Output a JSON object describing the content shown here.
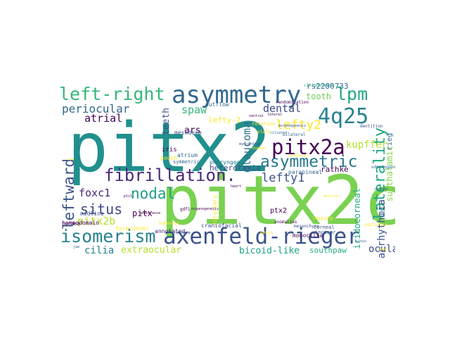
{
  "words": [
    {
      "text": "pitx2",
      "color": "#21908d"
    },
    {
      "text": "pitx2c",
      "color": "#7ad151"
    },
    {
      "text": "asymmetry",
      "color": "#31688e"
    },
    {
      "text": "axenfeld-rieger",
      "color": "#3b528b"
    },
    {
      "text": "left-right",
      "color": "#35b779"
    },
    {
      "text": "4q25",
      "color": "#26828e"
    },
    {
      "text": "lpm",
      "color": "#22a884"
    },
    {
      "text": "pitx2a",
      "color": "#440154"
    },
    {
      "text": "asymmetric",
      "color": "#2a788e"
    },
    {
      "text": "fibrillation.",
      "color": "#482878"
    },
    {
      "text": "isomerism",
      "color": "#26828e"
    },
    {
      "text": "laterality",
      "color": "#22a884"
    },
    {
      "text": "leftward",
      "color": "#3b528b"
    },
    {
      "text": "nodal",
      "color": "#1f9e89"
    },
    {
      "text": "situs",
      "color": "#414487"
    },
    {
      "text": "periocular",
      "color": "#31688e"
    },
    {
      "text": "lefty2",
      "color": "#fde725"
    },
    {
      "text": "lefty1",
      "color": "#3b528b"
    },
    {
      "text": "spaw",
      "color": "#35b779"
    },
    {
      "text": "foxc1",
      "color": "#482878"
    },
    {
      "text": "atrial",
      "color": "#440154"
    },
    {
      "text": "tooth",
      "color": "#6ece58"
    },
    {
      "text": "dental",
      "color": "#3e4a89"
    },
    {
      "text": "glaucoma",
      "color": "#2c728e"
    },
    {
      "text": "pitx2b",
      "color": "#b5de2b"
    },
    {
      "text": "cilia",
      "color": "#26828e"
    },
    {
      "text": "extraocular",
      "color": "#b5de2b"
    },
    {
      "text": "bicoid-like",
      "color": "#1fa188"
    },
    {
      "text": "southpaw",
      "color": "#22a884"
    },
    {
      "text": "ocular",
      "color": "#3e4a89"
    },
    {
      "text": "arrhythmia",
      "color": "#3b528b"
    },
    {
      "text": "subthalamic",
      "color": "#84d44b"
    },
    {
      "text": "kupffer",
      "color": "#b5de2b"
    },
    {
      "text": "rathke",
      "color": "#440154"
    },
    {
      "text": "heterotaxia",
      "color": "#3e4a89"
    },
    {
      "text": "rs2200733",
      "color": "#31688e"
    },
    {
      "text": "iridocorneal",
      "color": "#22a884"
    },
    {
      "text": "teeth",
      "color": "#3b528b"
    },
    {
      "text": "ars",
      "color": "#440154"
    },
    {
      "text": "lefty-2",
      "color": "#fde725"
    },
    {
      "text": "pitx",
      "color": "#440154"
    },
    {
      "text": "rieg",
      "color": "#31688e"
    },
    {
      "text": "mesoderm",
      "color": "#3b528b"
    },
    {
      "text": "iris",
      "color": "#440154"
    },
    {
      "text": "atrium",
      "color": "#31688e"
    },
    {
      "text": "pouch",
      "color": "#fde725"
    },
    {
      "text": "midline",
      "color": "#3b528b"
    },
    {
      "text": "homeodomain",
      "color": "#440154"
    },
    {
      "text": "pharyngeal",
      "color": "#2a788e"
    },
    {
      "text": "parapineal",
      "color": "#31688e"
    },
    {
      "text": "ptx2",
      "color": "#440154"
    },
    {
      "text": "pituitary",
      "color": "#fde725"
    },
    {
      "text": "incisor",
      "color": "#3b528b"
    },
    {
      "text": "corneal",
      "color": "#3b528b"
    },
    {
      "text": "looping",
      "color": "#fde725"
    },
    {
      "text": "monocilia",
      "color": "#440154"
    },
    {
      "text": "craniofacial",
      "color": "#3b528b"
    },
    {
      "text": "annotated",
      "color": "#482878"
    },
    {
      "text": "forerunner",
      "color": "#fde725"
    },
    {
      "text": "cornea",
      "color": "#440154"
    },
    {
      "text": "outflow",
      "color": "#31688e"
    },
    {
      "text": "symmetric",
      "color": "#31688e"
    },
    {
      "text": "rotation",
      "color": "#fde725"
    },
    {
      "text": "odontogenesis",
      "color": "#31688e"
    },
    {
      "text": "dentition",
      "color": "#3b528b"
    },
    {
      "text": "randomization",
      "color": "#440154"
    },
    {
      "text": "ciliogenesis",
      "color": "#22a884"
    },
    {
      "text": "gdf1",
      "color": "#440154"
    },
    {
      "text": "habenula",
      "color": "#fde725"
    },
    {
      "text": "anomalies",
      "color": "#440154"
    },
    {
      "text": "septation",
      "color": "#fde725"
    },
    {
      "text": "mesenchyme",
      "color": "#3b528b"
    },
    {
      "text": "bilateral",
      "color": "#31688e"
    },
    {
      "text": "isoform",
      "color": "#fde725"
    },
    {
      "text": "plate",
      "color": "#fde725"
    },
    {
      "text": "organogenesis",
      "color": "#440154"
    },
    {
      "text": "myocardium",
      "color": "#3b528b"
    },
    {
      "text": "lateral",
      "color": "#440154"
    },
    {
      "text": "ciliated",
      "color": "#31688e"
    },
    {
      "text": "morphogenesis",
      "color": "#3b528b"
    },
    {
      "text": "ventral",
      "color": "#440154"
    },
    {
      "text": "stomodeum",
      "color": "#3b528b"
    },
    {
      "text": "chamber",
      "color": "#fde725"
    },
    {
      "text": "sinus",
      "color": "#31688e"
    },
    {
      "text": "anterior",
      "color": "#fde725"
    },
    {
      "text": "heart",
      "color": "#440154"
    },
    {
      "text": "penetrance",
      "color": "#440154"
    },
    {
      "text": "embryo",
      "color": "#fde725"
    },
    {
      "text": "cardiac",
      "color": "#3b528b"
    },
    {
      "text": "eye",
      "color": "#fde725"
    },
    {
      "text": "ptx1",
      "color": "#440154"
    },
    {
      "text": "jaw",
      "color": "#31688e"
    },
    {
      "text": "node",
      "color": "#fde725"
    }
  ]
}
